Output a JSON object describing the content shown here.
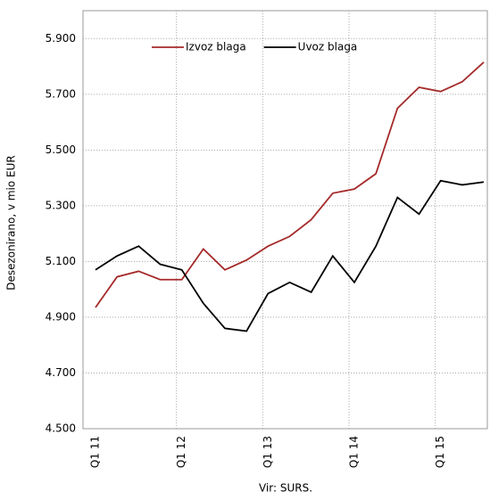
{
  "chart_data": {
    "type": "line",
    "y_label": "Desezonirano, v mio EUR",
    "source": "Vir: SURS.",
    "categories": [
      "Q1 11",
      null,
      null,
      null,
      "Q1 12",
      null,
      null,
      null,
      "Q1 13",
      null,
      null,
      null,
      "Q1 14",
      null,
      null,
      null,
      "Q1 15",
      null,
      null
    ],
    "series": [
      {
        "name": "Izvoz blaga",
        "color": "#a52a2a",
        "values": [
          4935,
          5045,
          5065,
          5035,
          5035,
          5145,
          5070,
          5105,
          5155,
          5190,
          5250,
          5345,
          5360,
          5415,
          5650,
          5725,
          5710,
          5745,
          5815
        ]
      },
      {
        "name": "Uvoz blaga",
        "color": "#000000",
        "values": [
          5070,
          5120,
          5155,
          5090,
          5070,
          4950,
          4860,
          4850,
          4985,
          5025,
          4990,
          5120,
          5025,
          5155,
          5330,
          5270,
          5390,
          5375,
          5385
        ]
      }
    ],
    "ylim": [
      4500,
      6000
    ],
    "yticks": [
      {
        "value": 4500,
        "label": "4.500"
      },
      {
        "value": 4700,
        "label": "4.700"
      },
      {
        "value": 4900,
        "label": "4.900"
      },
      {
        "value": 5100,
        "label": "5.100"
      },
      {
        "value": 5300,
        "label": "5.300"
      },
      {
        "value": 5500,
        "label": "5.500"
      },
      {
        "value": 5700,
        "label": "5.700"
      },
      {
        "value": 5900,
        "label": "5.900"
      }
    ],
    "grid": true,
    "legend": "top"
  }
}
